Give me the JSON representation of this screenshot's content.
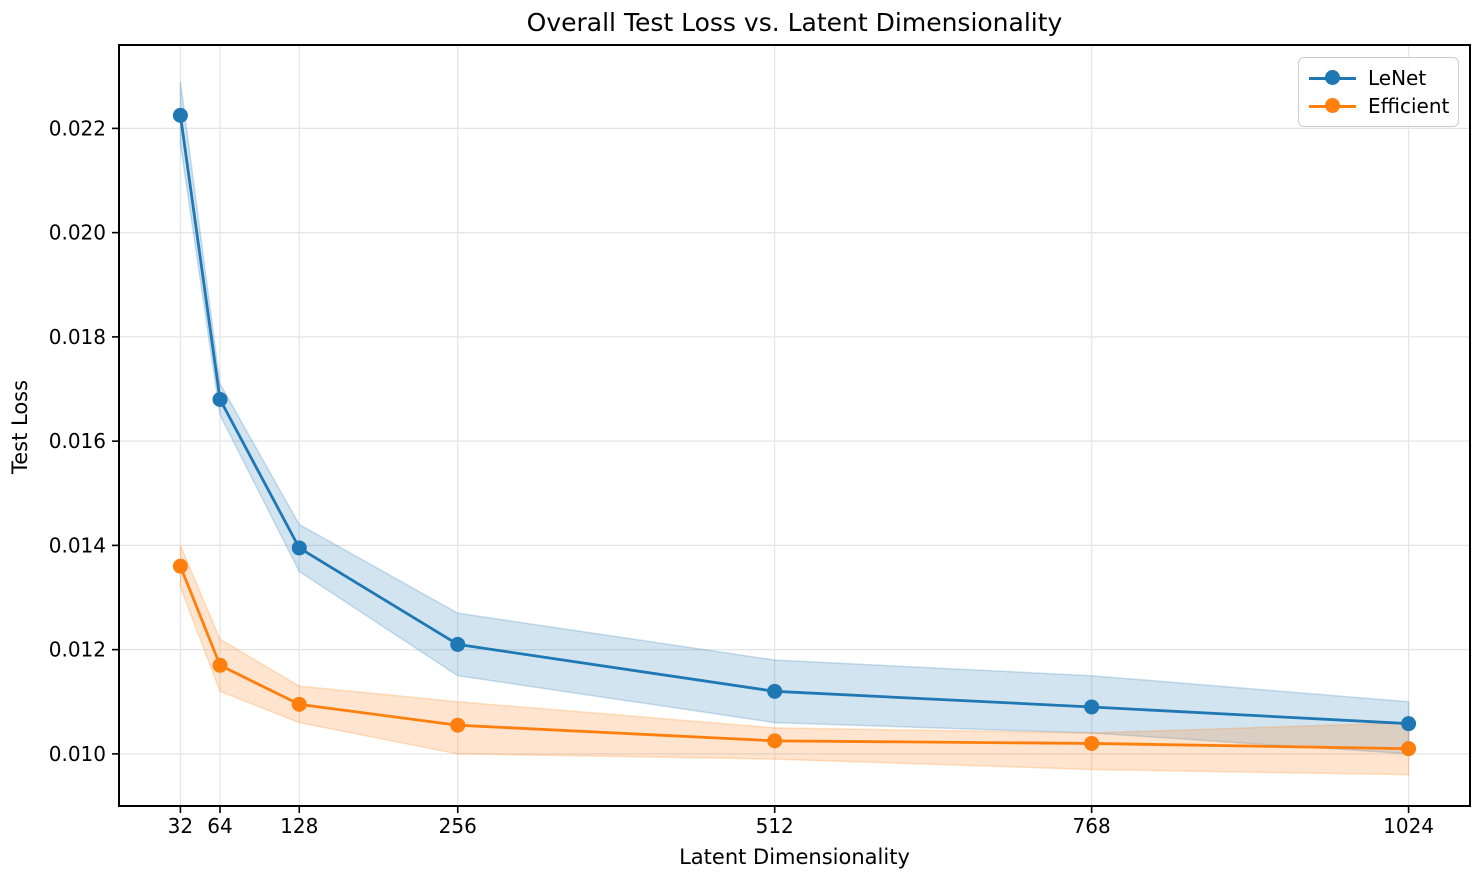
{
  "figure": {
    "background": "#ffffff"
  },
  "chart_data": {
    "type": "line",
    "title": "Overall Test Loss vs. Latent Dimensionality",
    "xlabel": "Latent Dimensionality",
    "ylabel": "Test Loss",
    "x": [
      32,
      64,
      128,
      256,
      512,
      768,
      1024
    ],
    "x_tick_labels": [
      "32",
      "64",
      "128",
      "256",
      "512",
      "768",
      "1024"
    ],
    "y_ticks": [
      0.01,
      0.012,
      0.014,
      0.016,
      0.018,
      0.02,
      0.022
    ],
    "y_tick_labels": [
      "0.010",
      "0.012",
      "0.014",
      "0.016",
      "0.018",
      "0.020",
      "0.022"
    ],
    "xlim": [
      -17.6,
      1073.6
    ],
    "ylim": [
      0.009,
      0.0236
    ],
    "grid": true,
    "legend": {
      "position": "upper right",
      "entries": [
        "LeNet",
        "Efficient"
      ]
    },
    "series": [
      {
        "name": "LeNet",
        "color": "#1f77b4",
        "values": [
          0.02225,
          0.0168,
          0.01395,
          0.0121,
          0.0112,
          0.0109,
          0.01058
        ],
        "band_lower": [
          0.0217,
          0.0165,
          0.0135,
          0.0115,
          0.0106,
          0.0104,
          0.01
        ],
        "band_upper": [
          0.0229,
          0.0171,
          0.0144,
          0.0127,
          0.0118,
          0.0115,
          0.011
        ]
      },
      {
        "name": "Efficient",
        "color": "#ff7f0e",
        "values": [
          0.0136,
          0.0117,
          0.01095,
          0.01055,
          0.01025,
          0.0102,
          0.0101
        ],
        "band_lower": [
          0.0132,
          0.0112,
          0.0106,
          0.01,
          0.0099,
          0.0097,
          0.0096
        ],
        "band_upper": [
          0.014,
          0.0122,
          0.0113,
          0.011,
          0.0105,
          0.0104,
          0.0106
        ]
      }
    ]
  }
}
